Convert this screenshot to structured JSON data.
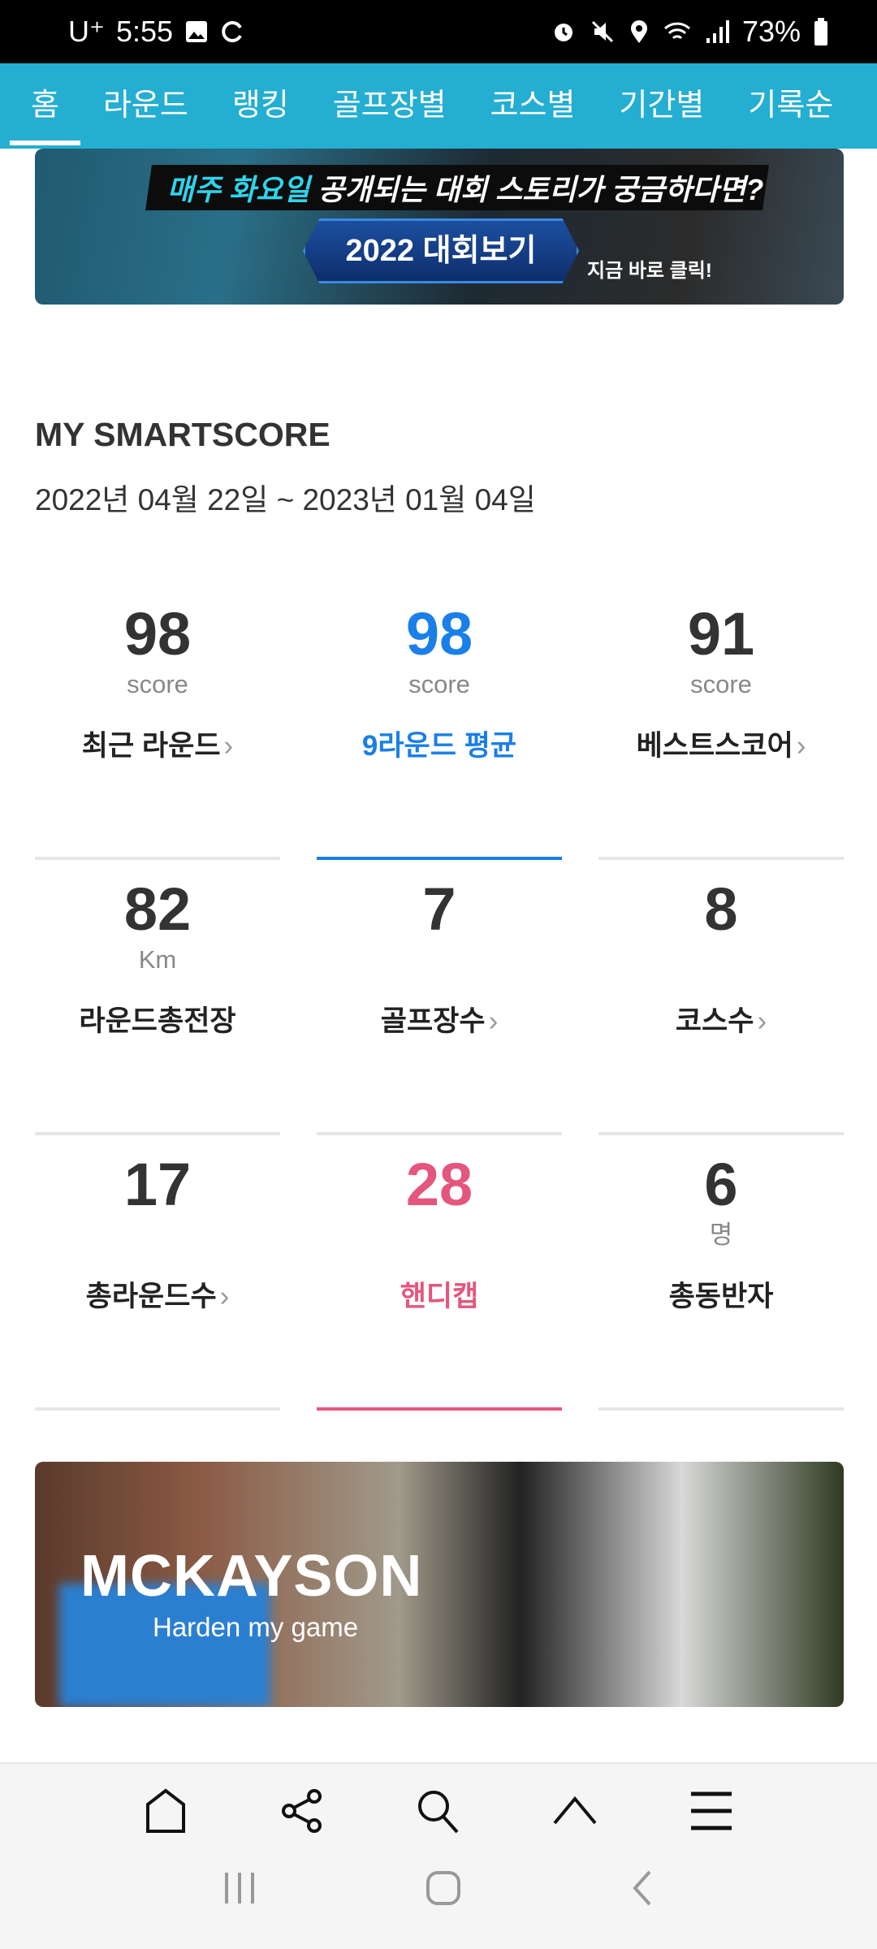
{
  "status_bar": {
    "carrier": "U⁺",
    "time": "5:55",
    "battery": "73%"
  },
  "nav": {
    "tabs": [
      {
        "label": "홈",
        "active": true
      },
      {
        "label": "라운드"
      },
      {
        "label": "랭킹"
      },
      {
        "label": "골프장별"
      },
      {
        "label": "코스별"
      },
      {
        "label": "기간별"
      },
      {
        "label": "기록순"
      }
    ]
  },
  "banner_top": {
    "highlight": "매주 화요일",
    "text": " 공개되는 대회 스토리가 궁금하다면?",
    "button": "2022 대회보기",
    "cta": "지금 바로 클릭!"
  },
  "smartscore": {
    "title": "MY SMARTSCORE",
    "date_range": "2022년 04월 22일 ~ 2023년 01월 04일",
    "stats": [
      {
        "value": "98",
        "unit": "score",
        "label": "최근 라운드",
        "chevron": true
      },
      {
        "value": "98",
        "unit": "score",
        "label": "9라운드 평균",
        "chevron": false,
        "accent": "#1a7fe8"
      },
      {
        "value": "91",
        "unit": "score",
        "label": "베스트스코어",
        "chevron": true
      },
      {
        "value": "82",
        "unit": "Km",
        "label": "라운드총전장",
        "chevron": false
      },
      {
        "value": "7",
        "unit": "",
        "label": "골프장수",
        "chevron": true
      },
      {
        "value": "8",
        "unit": "",
        "label": "코스수",
        "chevron": true
      },
      {
        "value": "17",
        "unit": "",
        "label": "총라운드수",
        "chevron": true
      },
      {
        "value": "28",
        "unit": "",
        "label": "핸디캡",
        "chevron": false,
        "accent": "#e4567d"
      },
      {
        "value": "6",
        "unit": "명",
        "label": "총동반자",
        "chevron": false
      }
    ]
  },
  "banner_bottom": {
    "brand": "MCKAYSON",
    "tagline": "Harden my game"
  },
  "chevron": "›",
  "colors": {
    "nav": "#24aed2",
    "blue": "#1a7fe8",
    "pink": "#e4567d"
  }
}
